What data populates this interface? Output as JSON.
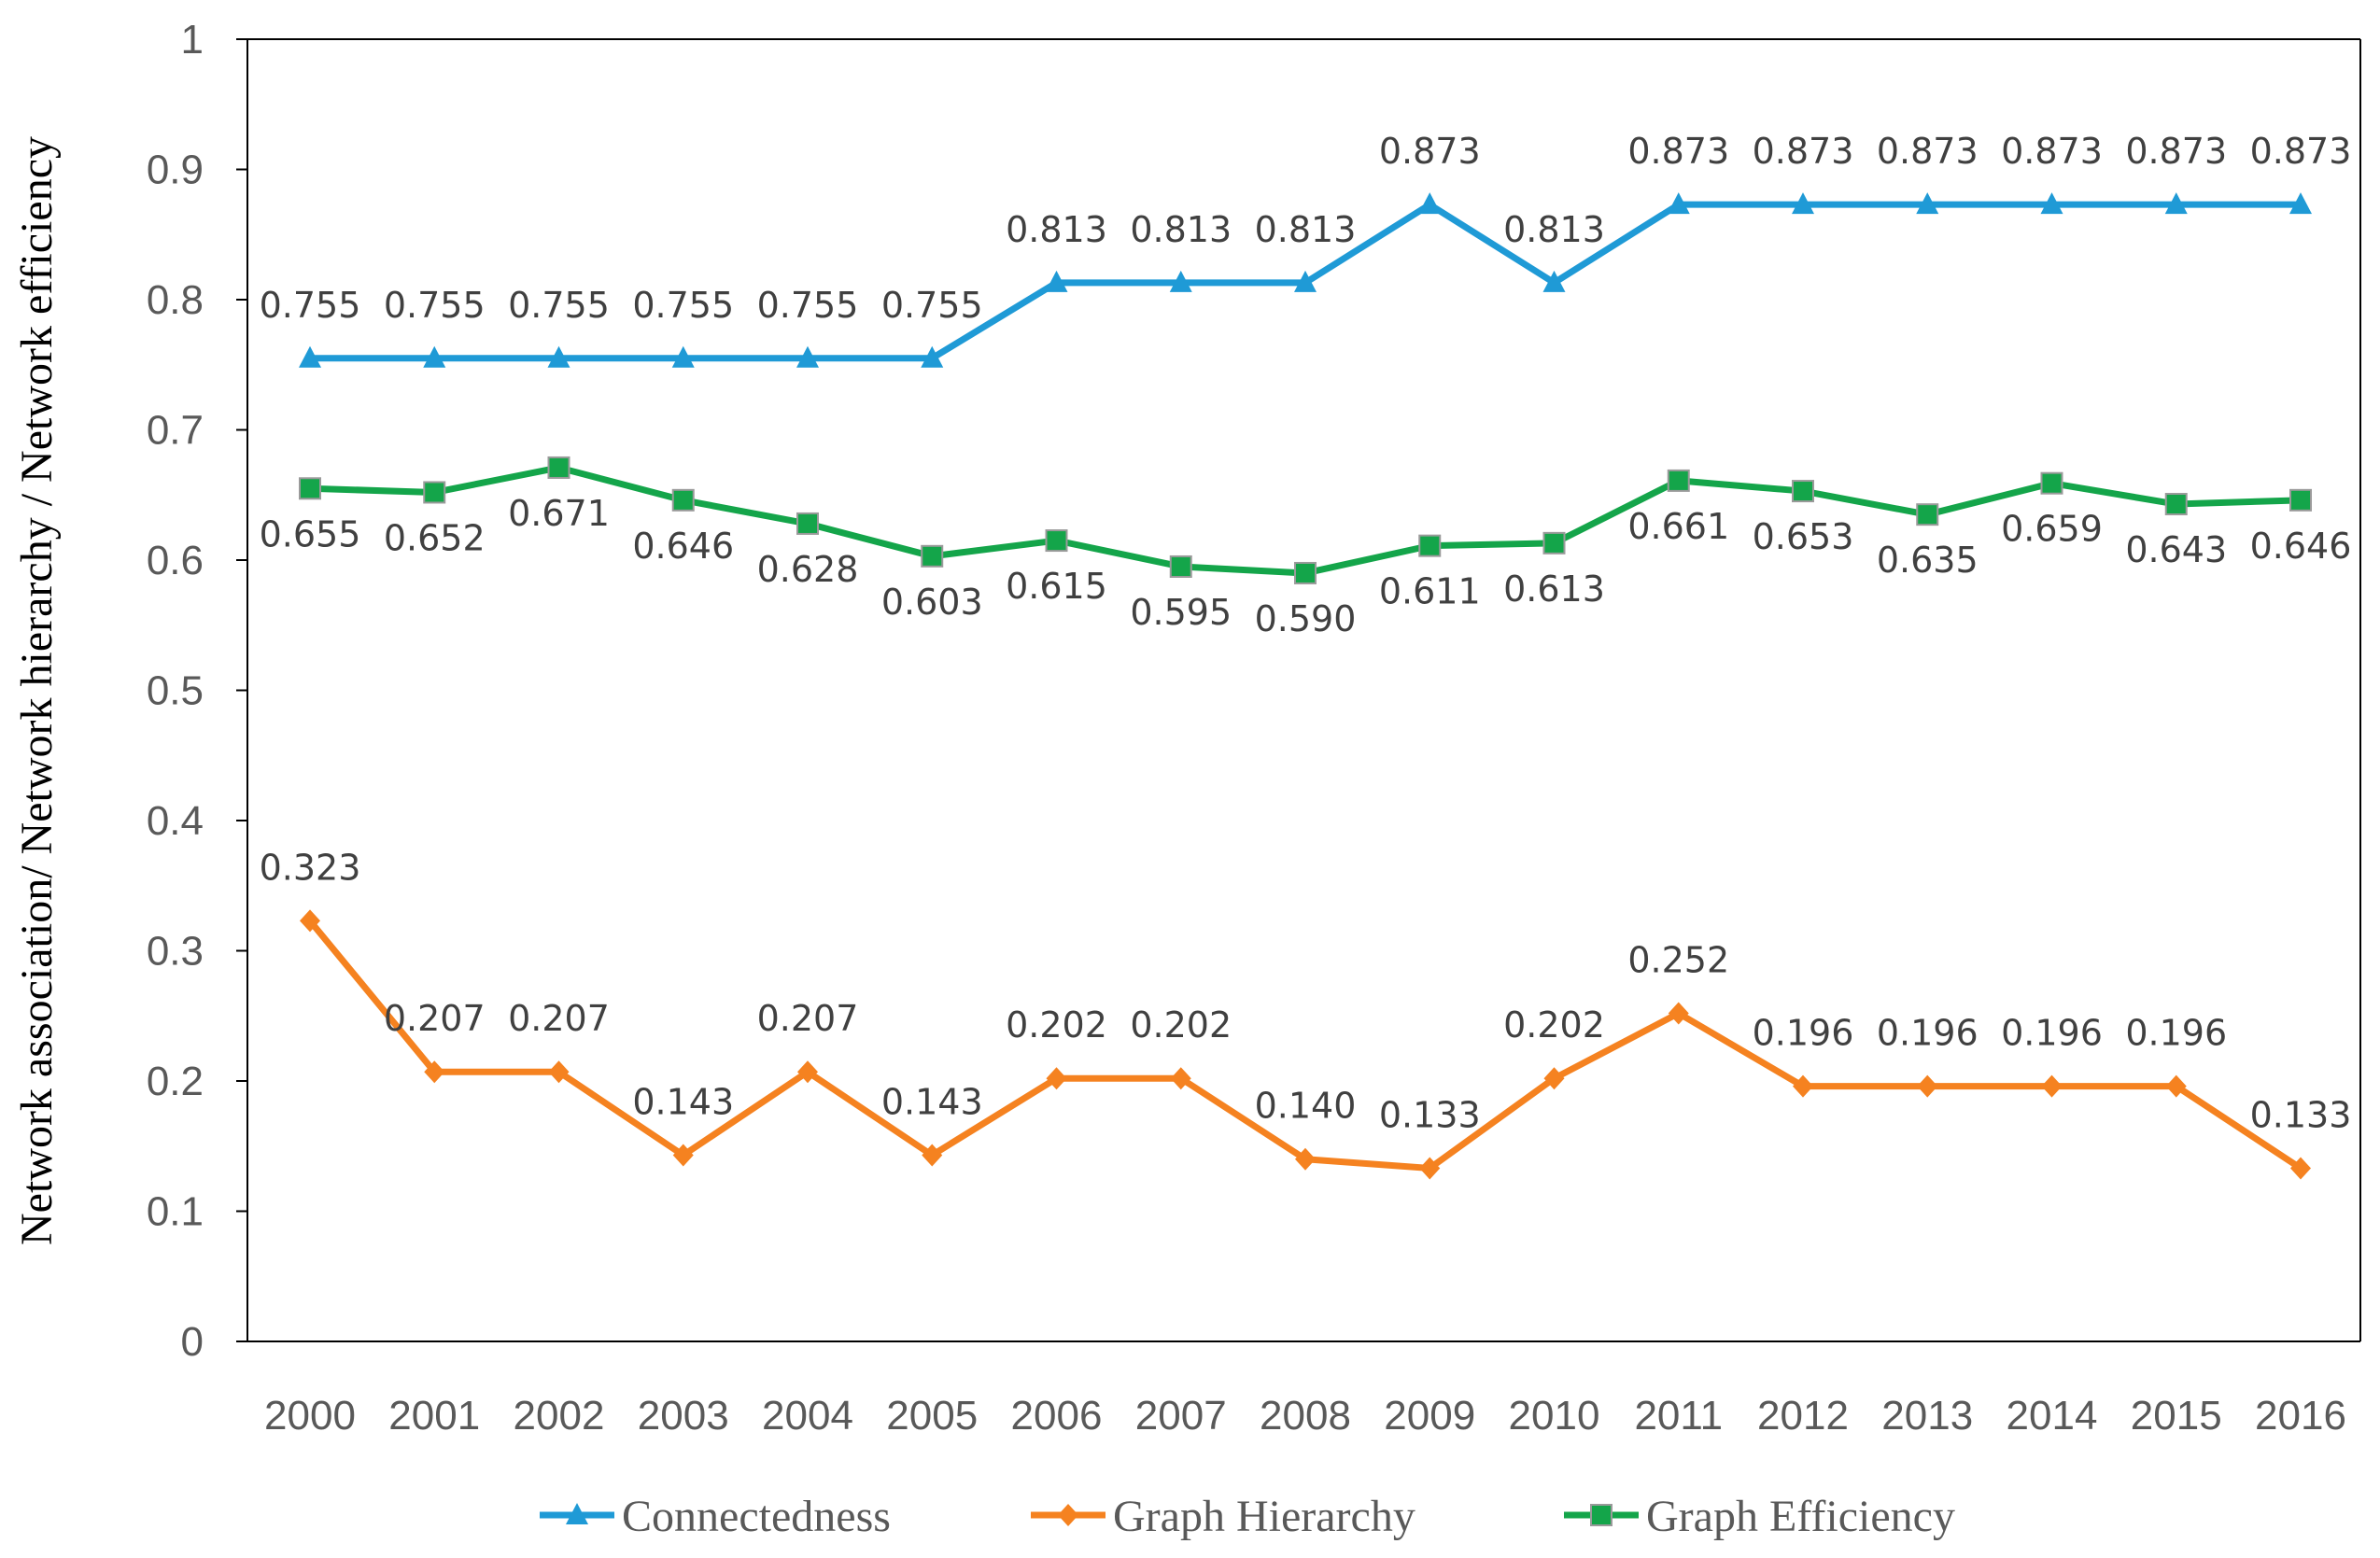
{
  "chart_data": {
    "type": "line",
    "title": "",
    "xlabel": "",
    "ylabel": "Network association/ Network hierarchy / Network efficiency",
    "ylim": [
      0,
      1
    ],
    "yticks": [
      "0",
      "0.1",
      "0.2",
      "0.3",
      "0.4",
      "0.5",
      "0.6",
      "0.7",
      "0.8",
      "0.9",
      "1"
    ],
    "ytick_values": [
      0,
      0.1,
      0.2,
      0.3,
      0.4,
      0.5,
      0.6,
      0.7,
      0.8,
      0.9,
      1
    ],
    "grid": false,
    "legend_position": "bottom",
    "categories": [
      "2000",
      "2001",
      "2002",
      "2003",
      "2004",
      "2005",
      "2006",
      "2007",
      "2008",
      "2009",
      "2010",
      "2011",
      "2012",
      "2013",
      "2014",
      "2015",
      "2016"
    ],
    "series": [
      {
        "name": "Connectedness",
        "color": "#1F9AD6",
        "marker": "triangle",
        "label_position": "above",
        "values": [
          0.755,
          0.755,
          0.755,
          0.755,
          0.755,
          0.755,
          0.813,
          0.813,
          0.813,
          0.873,
          0.813,
          0.873,
          0.873,
          0.873,
          0.873,
          0.873,
          0.873
        ],
        "labels": [
          "0.755",
          "0.755",
          "0.755",
          "0.755",
          "0.755",
          "0.755",
          "0.813",
          "0.813",
          "0.813",
          "0.873",
          "0.813",
          "0.873",
          "0.873",
          "0.873",
          "0.873",
          "0.873",
          "0.873"
        ]
      },
      {
        "name": "Graph Hierarchy",
        "color": "#F58220",
        "marker": "diamond",
        "label_position": "above",
        "values": [
          0.323,
          0.207,
          0.207,
          0.143,
          0.207,
          0.143,
          0.202,
          0.202,
          0.14,
          0.133,
          0.202,
          0.252,
          0.196,
          0.196,
          0.196,
          0.196,
          0.133
        ],
        "labels": [
          "0.323",
          "0.207",
          "0.207",
          "0.143",
          "0.207",
          "0.143",
          "0.202",
          "0.202",
          "0.140",
          "0.133",
          "0.202",
          "0.252",
          "0.196",
          "0.196",
          "0.196",
          "0.196",
          "0.133"
        ]
      },
      {
        "name": "Graph Efficiency",
        "color": "#14A54A",
        "marker": "square",
        "label_position": "below",
        "values": [
          0.655,
          0.652,
          0.671,
          0.646,
          0.628,
          0.603,
          0.615,
          0.595,
          0.59,
          0.611,
          0.613,
          0.661,
          0.653,
          0.635,
          0.659,
          0.643,
          0.646
        ],
        "labels": [
          "0.655",
          "0.652",
          "0.671",
          "0.646",
          "0.628",
          "0.603",
          "0.615",
          "0.595",
          "0.590",
          "0.611",
          "0.613",
          "0.661",
          "0.653",
          "0.635",
          "0.659",
          "0.643",
          "0.646"
        ]
      }
    ]
  }
}
